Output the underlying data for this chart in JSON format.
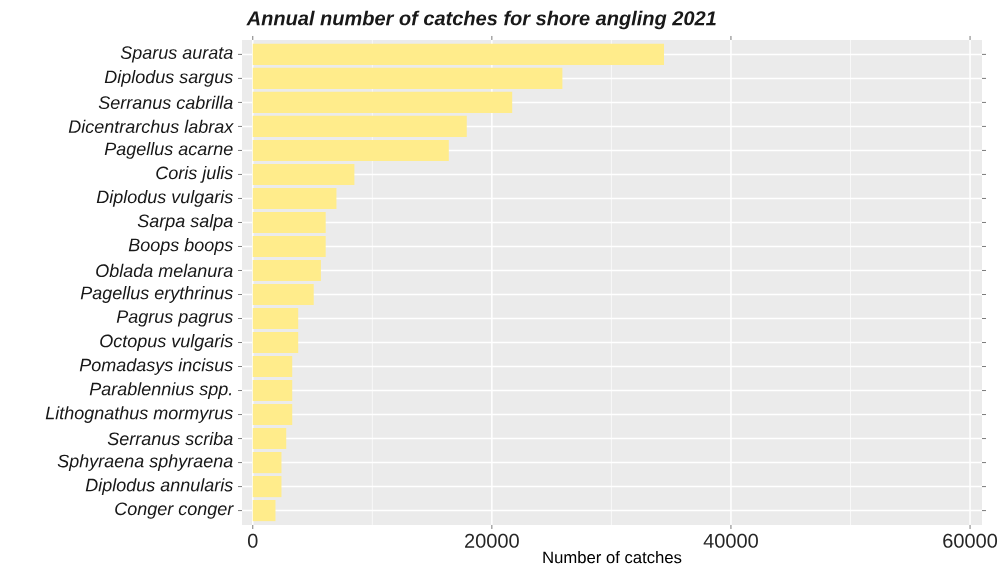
{
  "chart_data": {
    "type": "bar",
    "orientation": "horizontal",
    "title": "Annual number of catches for shore angling 2021",
    "xlabel": "Number of catches",
    "categories": [
      "Sparus aurata",
      "Diplodus sargus",
      "Serranus cabrilla",
      "Dicentrarchus labrax",
      "Pagellus acarne",
      "Coris julis",
      "Diplodus vulgaris",
      "Sarpa salpa",
      "Boops boops",
      "Oblada melanura",
      "Pagellus erythrinus",
      "Pagrus pagrus",
      "Octopus vulgaris",
      "Pomadasys incisus",
      "Parablennius spp.",
      "Lithognathus mormyrus",
      "Serranus scriba",
      "Sphyraena sphyraena",
      "Diplodus annularis",
      "Conger conger"
    ],
    "values": [
      34400,
      25900,
      21700,
      17900,
      16400,
      8500,
      7000,
      6100,
      6100,
      5700,
      5100,
      3800,
      3800,
      3300,
      3300,
      3300,
      2800,
      2400,
      2400,
      1900
    ],
    "color": "#ffec8b",
    "xlim": [
      -900,
      61000
    ],
    "xticks": [
      0,
      20000,
      40000,
      60000
    ],
    "grid": true
  }
}
